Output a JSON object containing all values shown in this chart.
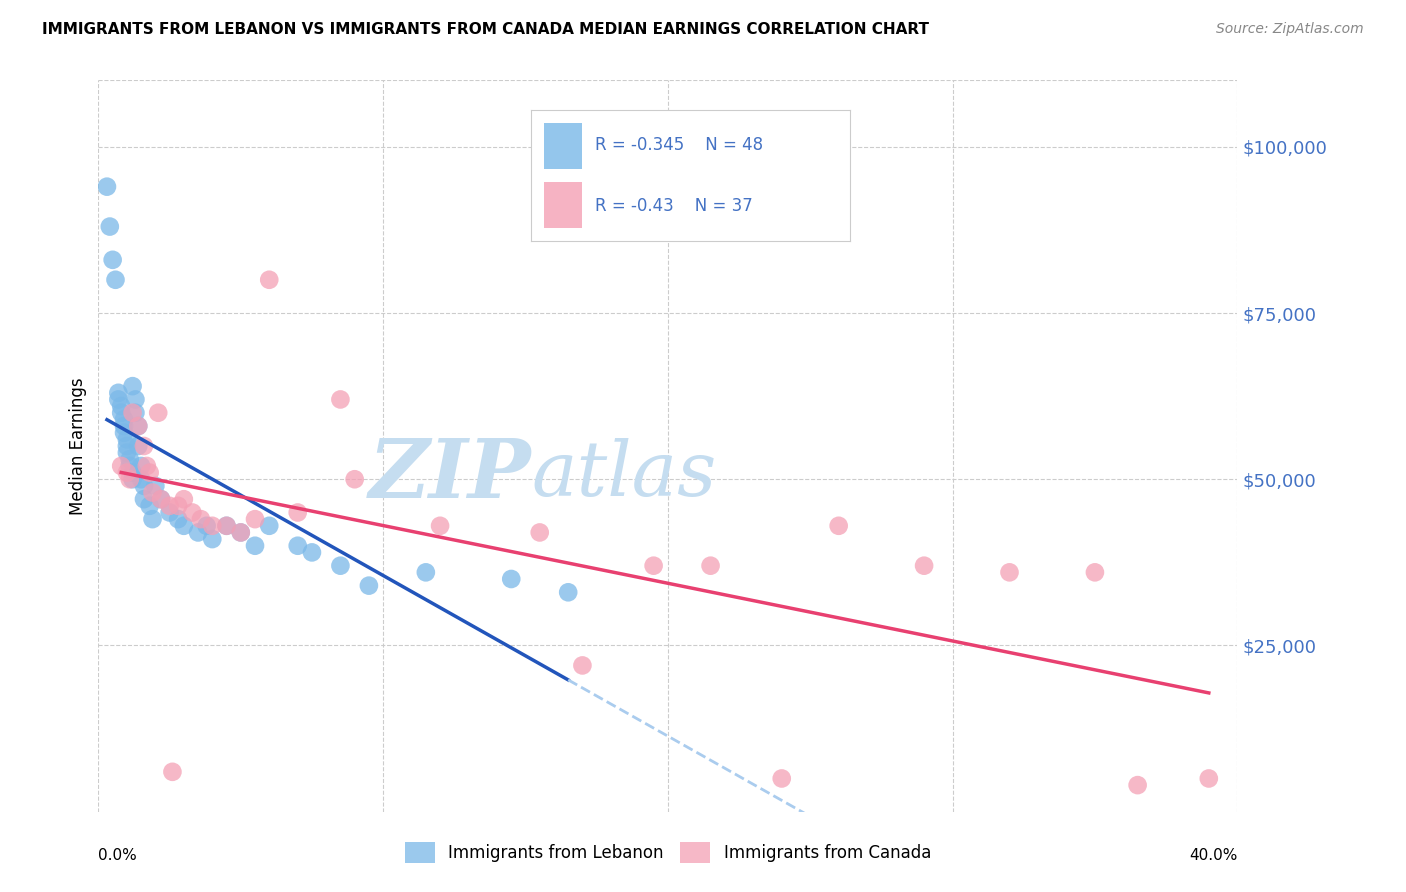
{
  "title": "IMMIGRANTS FROM LEBANON VS IMMIGRANTS FROM CANADA MEDIAN EARNINGS CORRELATION CHART",
  "source": "Source: ZipAtlas.com",
  "ylabel": "Median Earnings",
  "lebanon_color": "#7ab8e8",
  "canada_color": "#f4a0b5",
  "trendline_lebanon_color": "#2255bb",
  "trendline_canada_color": "#e84070",
  "trendline_ext_color": "#aaccee",
  "legend_text_color": "#4472c4",
  "yaxis_color": "#4472c4",
  "R_lebanon": -0.345,
  "N_lebanon": 48,
  "R_canada": -0.43,
  "N_canada": 37,
  "ytick_labels": [
    "$25,000",
    "$50,000",
    "$75,000",
    "$100,000"
  ],
  "ytick_values": [
    25000,
    50000,
    75000,
    100000
  ],
  "xmin": 0.0,
  "xmax": 0.4,
  "ymin": 0,
  "ymax": 110000,
  "lebanon_x": [
    0.003,
    0.004,
    0.005,
    0.006,
    0.007,
    0.007,
    0.008,
    0.008,
    0.009,
    0.009,
    0.009,
    0.01,
    0.01,
    0.01,
    0.011,
    0.011,
    0.012,
    0.012,
    0.012,
    0.013,
    0.013,
    0.014,
    0.014,
    0.015,
    0.015,
    0.016,
    0.016,
    0.018,
    0.019,
    0.02,
    0.022,
    0.025,
    0.028,
    0.03,
    0.035,
    0.038,
    0.04,
    0.045,
    0.05,
    0.055,
    0.06,
    0.07,
    0.075,
    0.085,
    0.095,
    0.115,
    0.145,
    0.165
  ],
  "lebanon_y": [
    94000,
    88000,
    83000,
    80000,
    63000,
    62000,
    61000,
    60000,
    59000,
    58000,
    57000,
    56000,
    55000,
    54000,
    53000,
    52000,
    51000,
    50000,
    64000,
    62000,
    60000,
    58000,
    55000,
    52000,
    50000,
    49000,
    47000,
    46000,
    44000,
    49000,
    47000,
    45000,
    44000,
    43000,
    42000,
    43000,
    41000,
    43000,
    42000,
    40000,
    43000,
    40000,
    39000,
    37000,
    34000,
    36000,
    35000,
    33000
  ],
  "canada_x": [
    0.008,
    0.01,
    0.011,
    0.012,
    0.014,
    0.016,
    0.017,
    0.018,
    0.019,
    0.021,
    0.022,
    0.025,
    0.026,
    0.028,
    0.03,
    0.033,
    0.036,
    0.04,
    0.045,
    0.05,
    0.055,
    0.06,
    0.07,
    0.085,
    0.09,
    0.12,
    0.155,
    0.17,
    0.195,
    0.215,
    0.24,
    0.26,
    0.29,
    0.32,
    0.35,
    0.365,
    0.39
  ],
  "canada_y": [
    52000,
    51000,
    50000,
    60000,
    58000,
    55000,
    52000,
    51000,
    48000,
    60000,
    47000,
    46000,
    6000,
    46000,
    47000,
    45000,
    44000,
    43000,
    43000,
    42000,
    44000,
    80000,
    45000,
    62000,
    50000,
    43000,
    42000,
    22000,
    37000,
    37000,
    5000,
    43000,
    37000,
    36000,
    36000,
    4000,
    5000
  ],
  "watermark_zip_color": "#c5ddf0",
  "watermark_atlas_color": "#c5ddf0"
}
